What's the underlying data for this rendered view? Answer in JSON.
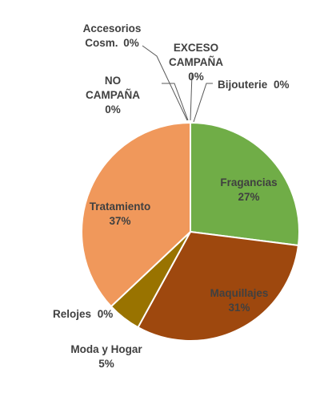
{
  "chart_data": {
    "type": "pie",
    "title": "",
    "categories": [
      "Fragancias",
      "Maquillajes",
      "Moda y Hogar",
      "Relojes",
      "Tratamiento",
      "NO CAMPAÑA",
      "Accesorios Cosm.",
      "EXCESO CAMPAÑA",
      "Bijouterie"
    ],
    "values": [
      27,
      31,
      5,
      0,
      37,
      0,
      0,
      0,
      0
    ],
    "labels": [
      {
        "name": "Fragancias",
        "value": "27%",
        "color": "#70ad47",
        "inside": true
      },
      {
        "name": "Maquillajes",
        "value": "31%",
        "color": "#9e480e",
        "inside": true
      },
      {
        "name": "Moda y Hogar",
        "value": "5%",
        "color": "#997300",
        "inside": false
      },
      {
        "name": "Relojes",
        "value": "0%",
        "color": "#a5a5a5",
        "inside": false
      },
      {
        "name": "Tratamiento",
        "value": "37%",
        "color": "#f0985b",
        "inside": true
      },
      {
        "name": "NO CAMPAÑA",
        "value": "0%",
        "color": "#ffc000",
        "inside": false
      },
      {
        "name": "Accesorios Cosm.",
        "value": "0%",
        "color": "#5b9bd5",
        "inside": false
      },
      {
        "name": "EXCESO CAMPAÑA",
        "value": "0%",
        "color": "#4472c4",
        "inside": false
      },
      {
        "name": "Bijouterie",
        "value": "0%",
        "color": "#ed7d31",
        "inside": false
      }
    ],
    "legend": "none"
  }
}
